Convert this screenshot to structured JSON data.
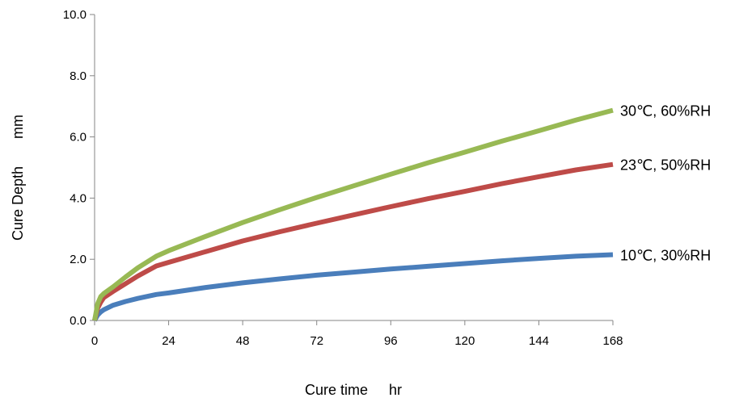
{
  "chart_data": {
    "type": "line",
    "title": "",
    "xlabel": "Cure time",
    "xunit": "hr",
    "ylabel": "Cure Depth",
    "yunit": "mm",
    "xlim": [
      0,
      168
    ],
    "ylim": [
      0,
      10
    ],
    "x_ticks": [
      "0",
      "24",
      "48",
      "72",
      "96",
      "120",
      "144",
      "168"
    ],
    "y_ticks": [
      "0.0",
      "2.0",
      "4.0",
      "6.0",
      "8.0",
      "10.0"
    ],
    "grid": false,
    "legend": "inline-right",
    "series": [
      {
        "name": "10℃, 30%RH",
        "color": "#4a7ebb",
        "x": [
          0,
          1,
          2,
          3,
          6,
          10,
          14,
          20,
          24,
          36,
          48,
          60,
          72,
          84,
          96,
          108,
          120,
          132,
          144,
          156,
          168
        ],
        "y": [
          0,
          0.18,
          0.28,
          0.35,
          0.5,
          0.62,
          0.72,
          0.85,
          0.9,
          1.08,
          1.23,
          1.36,
          1.48,
          1.58,
          1.68,
          1.77,
          1.86,
          1.95,
          2.03,
          2.1,
          2.15
        ]
      },
      {
        "name": "23℃, 50%RH",
        "color": "#be4b48",
        "x": [
          0,
          1,
          2,
          3,
          6,
          10,
          14,
          20,
          24,
          36,
          48,
          60,
          72,
          84,
          96,
          108,
          120,
          132,
          144,
          156,
          168
        ],
        "y": [
          0,
          0.4,
          0.6,
          0.75,
          0.95,
          1.2,
          1.45,
          1.78,
          1.9,
          2.25,
          2.6,
          2.9,
          3.18,
          3.45,
          3.72,
          3.98,
          4.22,
          4.47,
          4.7,
          4.92,
          5.1
        ]
      },
      {
        "name": "30℃, 60%RH",
        "color": "#98b954",
        "x": [
          0,
          1,
          2,
          3,
          6,
          10,
          14,
          20,
          24,
          36,
          48,
          60,
          72,
          84,
          96,
          108,
          120,
          132,
          144,
          156,
          168
        ],
        "y": [
          0,
          0.55,
          0.78,
          0.88,
          1.1,
          1.42,
          1.72,
          2.1,
          2.28,
          2.75,
          3.2,
          3.62,
          4.02,
          4.4,
          4.78,
          5.15,
          5.5,
          5.86,
          6.2,
          6.55,
          6.87
        ]
      }
    ]
  }
}
